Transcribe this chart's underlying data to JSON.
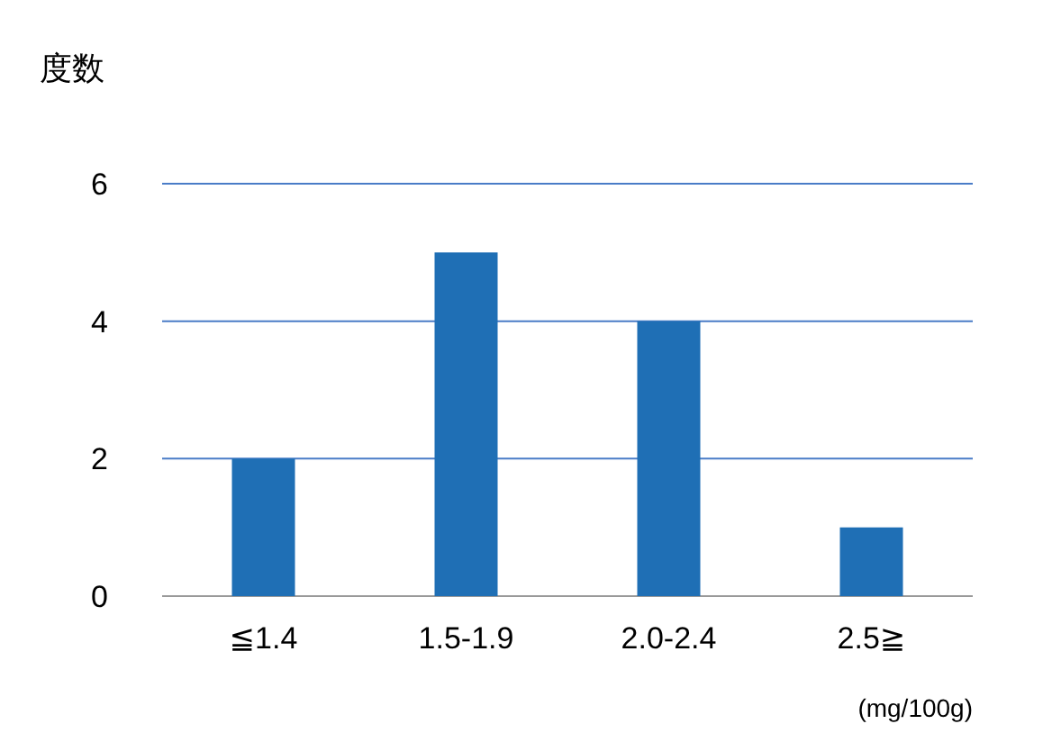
{
  "chart_data": {
    "type": "bar",
    "ylabel": "度数",
    "xlabel": "(mg/100g)",
    "categories": [
      "≦1.4",
      "1.5-1.9",
      "2.0-2.4",
      "2.5≧"
    ],
    "values": [
      2,
      5,
      4,
      1
    ],
    "color": "#1f6fb5",
    "ylim": [
      0,
      6
    ],
    "yticks": [
      0,
      2,
      4,
      6
    ],
    "grid": "y"
  }
}
